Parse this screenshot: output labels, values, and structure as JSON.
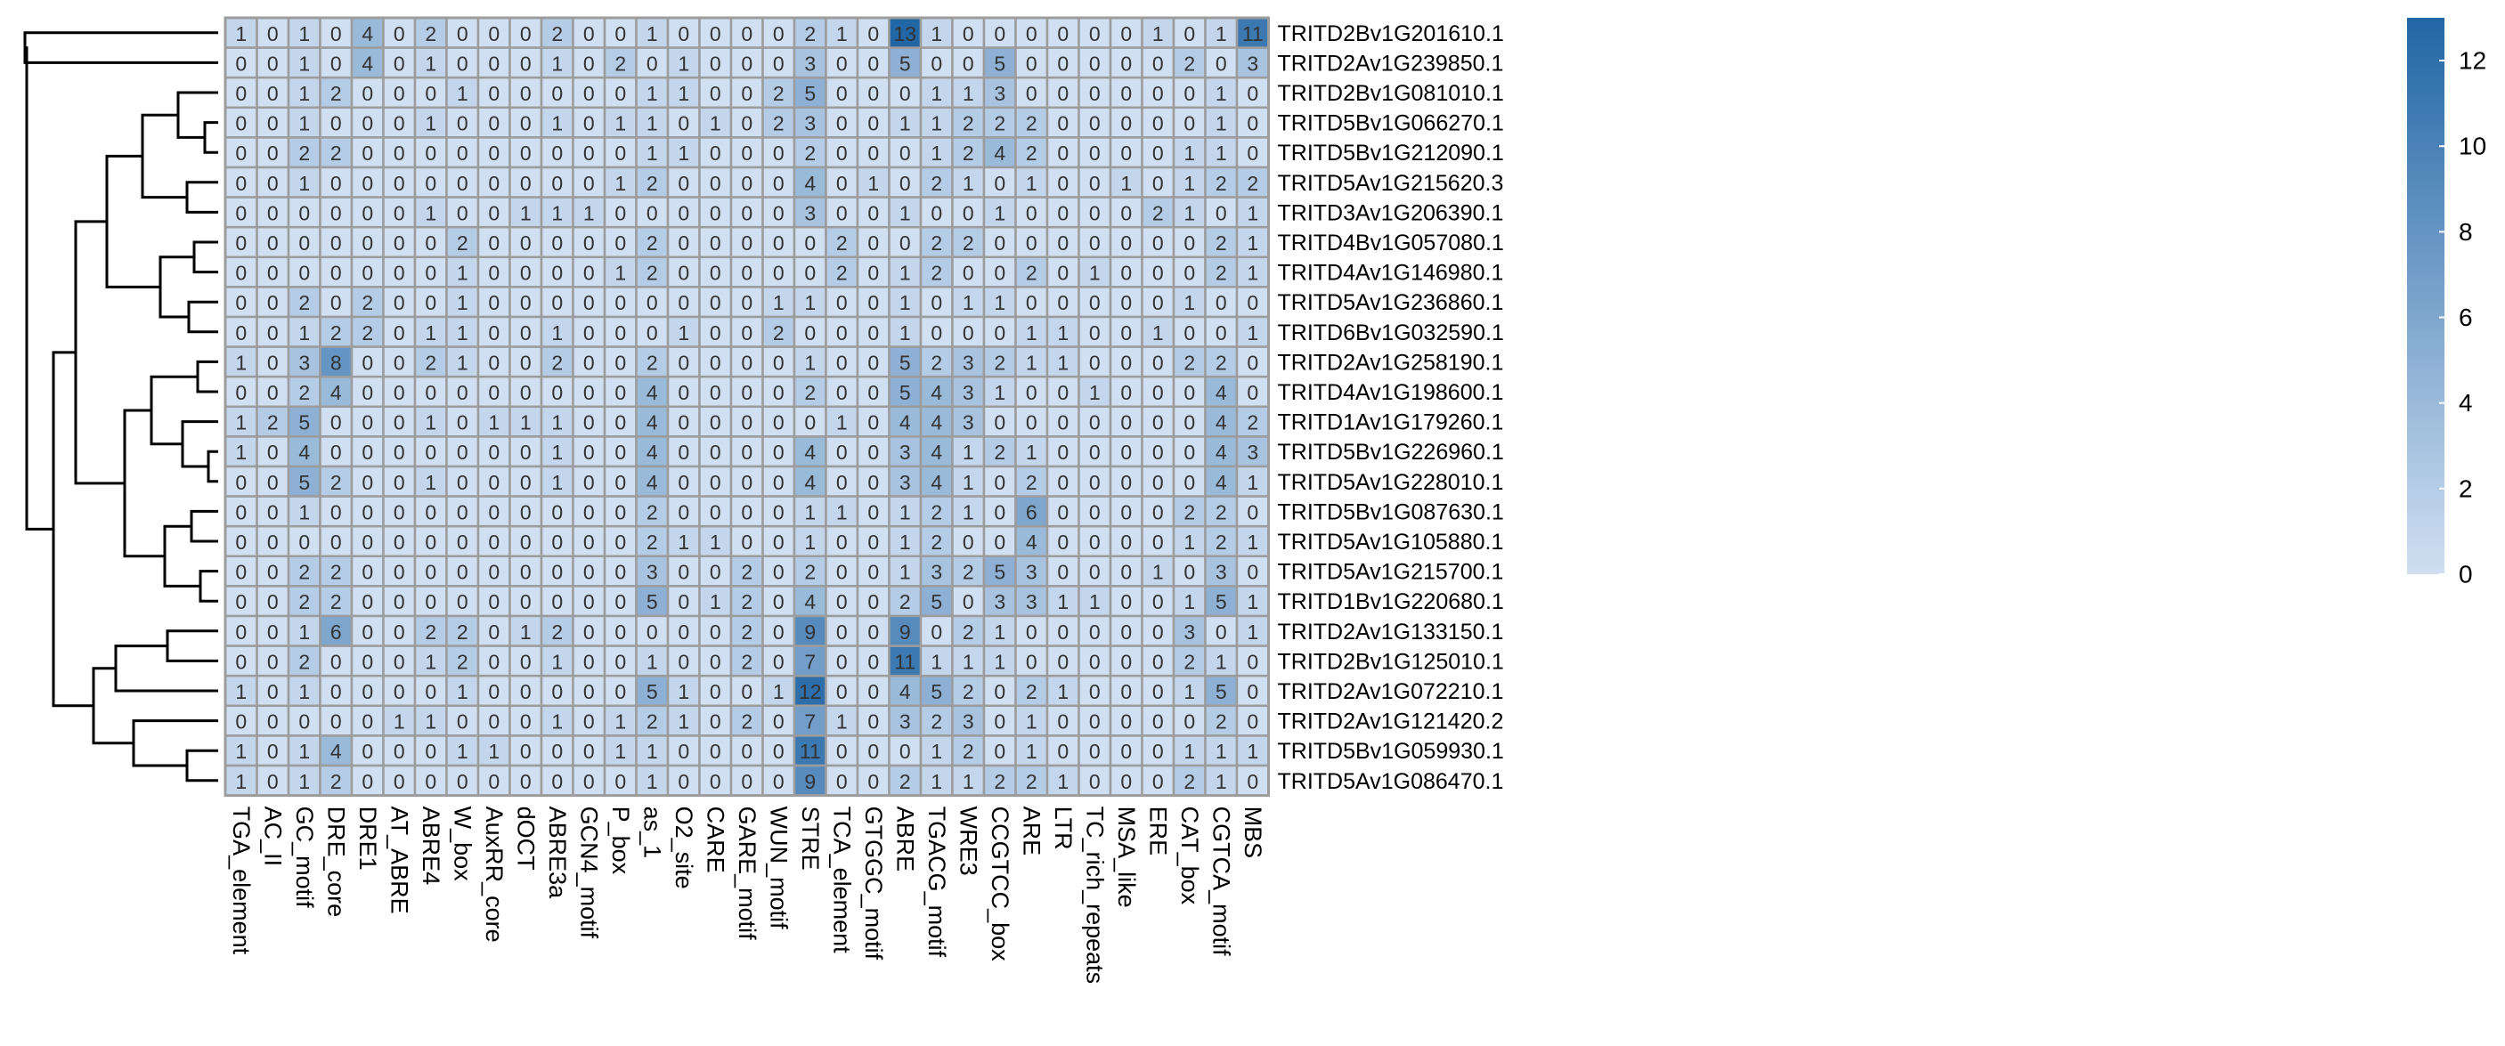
{
  "chart_data": {
    "type": "heatmap",
    "title": "",
    "colors": {
      "low": "#d0dff2",
      "high": "#2166a5",
      "grid": "#9c9c9c",
      "text": "#333333",
      "dendrogram": "#000000"
    },
    "rows": [
      "TRITD2Bv1G201610.1",
      "TRITD2Av1G239850.1",
      "TRITD2Bv1G081010.1",
      "TRITD5Bv1G066270.1",
      "TRITD5Bv1G212090.1",
      "TRITD5Av1G215620.3",
      "TRITD3Av1G206390.1",
      "TRITD4Bv1G057080.1",
      "TRITD4Av1G146980.1",
      "TRITD5Av1G236860.1",
      "TRITD6Bv1G032590.1",
      "TRITD2Av1G258190.1",
      "TRITD4Av1G198600.1",
      "TRITD1Av1G179260.1",
      "TRITD5Bv1G226960.1",
      "TRITD5Av1G228010.1",
      "TRITD5Bv1G087630.1",
      "TRITD5Av1G105880.1",
      "TRITD5Av1G215700.1",
      "TRITD1Bv1G220680.1",
      "TRITD2Av1G133150.1",
      "TRITD2Bv1G125010.1",
      "TRITD2Av1G072210.1",
      "TRITD2Av1G121420.2",
      "TRITD5Bv1G059930.1",
      "TRITD5Av1G086470.1"
    ],
    "columns": [
      "TGA_element",
      "AC_II",
      "GC_motif",
      "DRE_core",
      "DRE1",
      "AT_ABRE",
      "ABRE4",
      "W_box",
      "AuxRR_core",
      "dOCT",
      "ABRE3a",
      "GCN4_motif",
      "P_box",
      "as_1",
      "O2_site",
      "CARE",
      "GARE_motif",
      "WUN_motif",
      "STRE",
      "TCA_element",
      "GTGGC_motif",
      "ABRE",
      "TGACG_motif",
      "WRE3",
      "CCGTCC_box",
      "ARE",
      "LTR",
      "TC_rich_repeats",
      "MSA_like",
      "ERE",
      "CAT_box",
      "CGTCA_motif",
      "MBS"
    ],
    "values": [
      [
        1,
        0,
        1,
        0,
        4,
        0,
        2,
        0,
        0,
        0,
        2,
        0,
        0,
        1,
        0,
        0,
        0,
        0,
        2,
        1,
        0,
        13,
        1,
        0,
        0,
        0,
        0,
        0,
        0,
        1,
        0,
        1,
        11
      ],
      [
        0,
        0,
        1,
        0,
        4,
        0,
        1,
        0,
        0,
        0,
        1,
        0,
        2,
        0,
        1,
        0,
        0,
        0,
        3,
        0,
        0,
        5,
        0,
        0,
        5,
        0,
        0,
        0,
        0,
        0,
        2,
        0,
        3
      ],
      [
        0,
        0,
        1,
        2,
        0,
        0,
        0,
        1,
        0,
        0,
        0,
        0,
        0,
        1,
        1,
        0,
        0,
        2,
        5,
        0,
        0,
        0,
        1,
        1,
        3,
        0,
        0,
        0,
        0,
        0,
        0,
        1,
        0
      ],
      [
        0,
        0,
        1,
        0,
        0,
        0,
        1,
        0,
        0,
        0,
        1,
        0,
        1,
        1,
        0,
        1,
        0,
        2,
        3,
        0,
        0,
        1,
        1,
        2,
        2,
        2,
        0,
        0,
        0,
        0,
        0,
        1,
        0
      ],
      [
        0,
        0,
        2,
        2,
        0,
        0,
        0,
        0,
        0,
        0,
        0,
        0,
        0,
        1,
        1,
        0,
        0,
        0,
        2,
        0,
        0,
        0,
        1,
        2,
        4,
        2,
        0,
        0,
        0,
        0,
        1,
        1,
        0
      ],
      [
        0,
        0,
        1,
        0,
        0,
        0,
        0,
        0,
        0,
        0,
        0,
        0,
        1,
        2,
        0,
        0,
        0,
        0,
        4,
        0,
        1,
        0,
        2,
        1,
        0,
        1,
        0,
        0,
        1,
        0,
        1,
        2,
        2
      ],
      [
        0,
        0,
        0,
        0,
        0,
        0,
        1,
        0,
        0,
        1,
        1,
        1,
        0,
        0,
        0,
        0,
        0,
        0,
        3,
        0,
        0,
        1,
        0,
        0,
        1,
        0,
        0,
        0,
        0,
        2,
        1,
        0,
        1
      ],
      [
        0,
        0,
        0,
        0,
        0,
        0,
        0,
        2,
        0,
        0,
        0,
        0,
        0,
        2,
        0,
        0,
        0,
        0,
        0,
        2,
        0,
        0,
        2,
        2,
        0,
        0,
        0,
        0,
        0,
        0,
        0,
        2,
        1
      ],
      [
        0,
        0,
        0,
        0,
        0,
        0,
        0,
        1,
        0,
        0,
        0,
        0,
        1,
        2,
        0,
        0,
        0,
        0,
        0,
        2,
        0,
        1,
        2,
        0,
        0,
        2,
        0,
        1,
        0,
        0,
        0,
        2,
        1
      ],
      [
        0,
        0,
        2,
        0,
        2,
        0,
        0,
        1,
        0,
        0,
        0,
        0,
        0,
        0,
        0,
        0,
        0,
        1,
        1,
        0,
        0,
        1,
        0,
        1,
        1,
        0,
        0,
        0,
        0,
        0,
        1,
        0,
        0
      ],
      [
        0,
        0,
        1,
        2,
        2,
        0,
        1,
        1,
        0,
        0,
        1,
        0,
        0,
        0,
        1,
        0,
        0,
        2,
        0,
        0,
        0,
        1,
        0,
        0,
        0,
        1,
        1,
        0,
        0,
        1,
        0,
        0,
        1
      ],
      [
        1,
        0,
        3,
        8,
        0,
        0,
        2,
        1,
        0,
        0,
        2,
        0,
        0,
        2,
        0,
        0,
        0,
        0,
        1,
        0,
        0,
        5,
        2,
        3,
        2,
        1,
        1,
        0,
        0,
        0,
        2,
        2,
        0
      ],
      [
        0,
        0,
        2,
        4,
        0,
        0,
        0,
        0,
        0,
        0,
        0,
        0,
        0,
        4,
        0,
        0,
        0,
        0,
        2,
        0,
        0,
        5,
        4,
        3,
        1,
        0,
        0,
        1,
        0,
        0,
        0,
        4,
        0
      ],
      [
        1,
        2,
        5,
        0,
        0,
        0,
        1,
        0,
        1,
        1,
        1,
        0,
        0,
        4,
        0,
        0,
        0,
        0,
        0,
        1,
        0,
        4,
        4,
        3,
        0,
        0,
        0,
        0,
        0,
        0,
        0,
        4,
        2
      ],
      [
        1,
        0,
        4,
        0,
        0,
        0,
        0,
        0,
        0,
        0,
        1,
        0,
        0,
        4,
        0,
        0,
        0,
        0,
        4,
        0,
        0,
        3,
        4,
        1,
        2,
        1,
        0,
        0,
        0,
        0,
        0,
        4,
        3
      ],
      [
        0,
        0,
        5,
        2,
        0,
        0,
        1,
        0,
        0,
        0,
        1,
        0,
        0,
        4,
        0,
        0,
        0,
        0,
        4,
        0,
        0,
        3,
        4,
        1,
        0,
        2,
        0,
        0,
        0,
        0,
        0,
        4,
        1
      ],
      [
        0,
        0,
        1,
        0,
        0,
        0,
        0,
        0,
        0,
        0,
        0,
        0,
        0,
        2,
        0,
        0,
        0,
        0,
        1,
        1,
        0,
        1,
        2,
        1,
        0,
        6,
        0,
        0,
        0,
        0,
        2,
        2,
        0
      ],
      [
        0,
        0,
        0,
        0,
        0,
        0,
        0,
        0,
        0,
        0,
        0,
        0,
        0,
        2,
        1,
        1,
        0,
        0,
        1,
        0,
        0,
        1,
        2,
        0,
        0,
        4,
        0,
        0,
        0,
        0,
        1,
        2,
        1
      ],
      [
        0,
        0,
        2,
        2,
        0,
        0,
        0,
        0,
        0,
        0,
        0,
        0,
        0,
        3,
        0,
        0,
        2,
        0,
        2,
        0,
        0,
        1,
        3,
        2,
        5,
        3,
        0,
        0,
        0,
        1,
        0,
        3,
        0
      ],
      [
        0,
        0,
        2,
        2,
        0,
        0,
        0,
        0,
        0,
        0,
        0,
        0,
        0,
        5,
        0,
        1,
        2,
        0,
        4,
        0,
        0,
        2,
        5,
        0,
        3,
        3,
        1,
        1,
        0,
        0,
        1,
        5,
        1
      ],
      [
        0,
        0,
        1,
        6,
        0,
        0,
        2,
        2,
        0,
        1,
        2,
        0,
        0,
        0,
        0,
        0,
        2,
        0,
        9,
        0,
        0,
        9,
        0,
        2,
        1,
        0,
        0,
        0,
        0,
        0,
        3,
        0,
        1
      ],
      [
        0,
        0,
        2,
        0,
        0,
        0,
        1,
        2,
        0,
        0,
        1,
        0,
        0,
        1,
        0,
        0,
        2,
        0,
        7,
        0,
        0,
        11,
        1,
        1,
        1,
        0,
        0,
        0,
        0,
        0,
        2,
        1,
        0
      ],
      [
        1,
        0,
        1,
        0,
        0,
        0,
        0,
        1,
        0,
        0,
        0,
        0,
        0,
        5,
        1,
        0,
        0,
        1,
        12,
        0,
        0,
        4,
        5,
        2,
        0,
        2,
        1,
        0,
        0,
        0,
        1,
        5,
        0
      ],
      [
        0,
        0,
        0,
        0,
        0,
        1,
        1,
        0,
        0,
        0,
        1,
        0,
        1,
        2,
        1,
        0,
        2,
        0,
        7,
        1,
        0,
        3,
        2,
        3,
        0,
        1,
        0,
        0,
        0,
        0,
        0,
        2,
        0
      ],
      [
        1,
        0,
        1,
        4,
        0,
        0,
        0,
        1,
        1,
        0,
        0,
        0,
        1,
        1,
        0,
        0,
        0,
        0,
        11,
        0,
        0,
        0,
        1,
        2,
        0,
        1,
        0,
        0,
        0,
        0,
        1,
        1,
        1
      ],
      [
        1,
        0,
        1,
        2,
        0,
        0,
        0,
        0,
        0,
        0,
        0,
        0,
        0,
        1,
        0,
        0,
        0,
        0,
        9,
        0,
        0,
        2,
        1,
        1,
        2,
        2,
        1,
        0,
        0,
        0,
        2,
        1,
        0
      ]
    ],
    "legend": {
      "min": 0,
      "max": 13,
      "ticks": [
        0,
        2,
        4,
        6,
        8,
        10,
        12
      ]
    },
    "dendrogram": "rows",
    "legend_position": "right"
  }
}
